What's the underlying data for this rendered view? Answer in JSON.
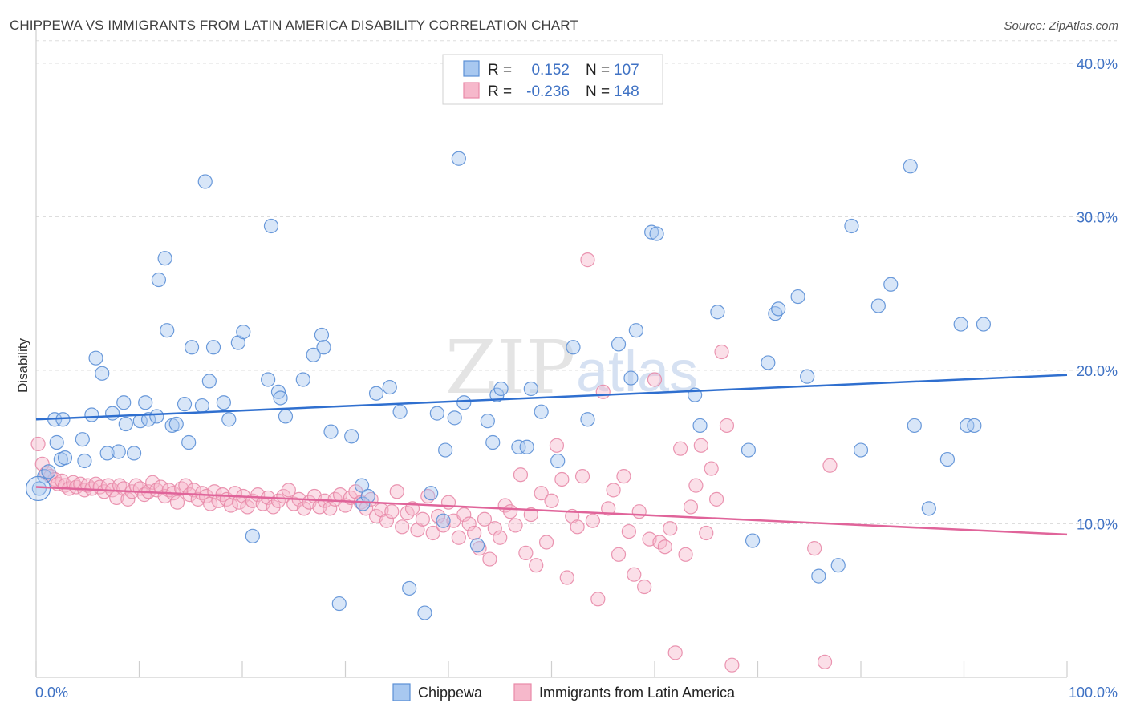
{
  "header": {
    "title": "CHIPPEWA VS IMMIGRANTS FROM LATIN AMERICA DISABILITY CORRELATION CHART",
    "source": "Source: ZipAtlas.com"
  },
  "watermark": {
    "zip": "ZIP",
    "atlas": "atlas"
  },
  "colors": {
    "blue_fill": "#a8c8f0",
    "blue_stroke": "#5b8fd6",
    "blue_line": "#2f6fcf",
    "pink_fill": "#f6b8cb",
    "pink_stroke": "#e889a8",
    "pink_line": "#e0649a",
    "tick_text": "#3f72c4",
    "grid": "#dddddd"
  },
  "chart_data": {
    "type": "scatter",
    "title": "CHIPPEWA VS IMMIGRANTS FROM LATIN AMERICA DISABILITY CORRELATION CHART",
    "xlabel": "",
    "ylabel": "Disability",
    "xlim": [
      0,
      100
    ],
    "ylim": [
      0,
      42
    ],
    "x_ticks": [
      "0.0%",
      "100.0%"
    ],
    "y_ticks": [
      {
        "value": 10,
        "label": "10.0%"
      },
      {
        "value": 20,
        "label": "20.0%"
      },
      {
        "value": 30,
        "label": "30.0%"
      },
      {
        "value": 40,
        "label": "40.0%"
      }
    ],
    "legend": {
      "placement": "top-center",
      "entries": [
        {
          "r_label": "R =",
          "r_value": "0.152",
          "n_label": "N =",
          "n_value": "107"
        },
        {
          "r_label": "R =",
          "r_value": "-0.236",
          "n_label": "N =",
          "n_value": "148"
        }
      ]
    },
    "series": [
      {
        "name": "Chippewa",
        "trend": [
          [
            0,
            16.8
          ],
          [
            100,
            19.7
          ]
        ],
        "points": [
          [
            0.3,
            12.3
          ],
          [
            0.8,
            13.1
          ],
          [
            1.2,
            13.4
          ],
          [
            1.8,
            16.8
          ],
          [
            2.0,
            15.3
          ],
          [
            2.4,
            14.2
          ],
          [
            2.6,
            16.8
          ],
          [
            2.8,
            14.3
          ],
          [
            4.5,
            15.5
          ],
          [
            4.7,
            14.1
          ],
          [
            5.4,
            17.1
          ],
          [
            5.8,
            20.8
          ],
          [
            6.4,
            19.8
          ],
          [
            6.9,
            14.6
          ],
          [
            7.4,
            17.2
          ],
          [
            8.0,
            14.7
          ],
          [
            8.5,
            17.9
          ],
          [
            8.7,
            16.5
          ],
          [
            9.5,
            14.6
          ],
          [
            10.1,
            16.7
          ],
          [
            10.6,
            17.9
          ],
          [
            10.9,
            16.8
          ],
          [
            11.7,
            17.0
          ],
          [
            11.9,
            25.9
          ],
          [
            12.5,
            27.3
          ],
          [
            12.7,
            22.6
          ],
          [
            13.2,
            16.4
          ],
          [
            13.6,
            16.5
          ],
          [
            14.4,
            17.8
          ],
          [
            14.8,
            15.3
          ],
          [
            15.1,
            21.5
          ],
          [
            16.1,
            17.7
          ],
          [
            16.4,
            32.3
          ],
          [
            16.8,
            19.3
          ],
          [
            17.2,
            21.5
          ],
          [
            18.2,
            17.9
          ],
          [
            18.7,
            16.8
          ],
          [
            19.6,
            21.8
          ],
          [
            20.1,
            22.5
          ],
          [
            21.0,
            9.2
          ],
          [
            22.5,
            19.4
          ],
          [
            22.8,
            29.4
          ],
          [
            23.5,
            18.6
          ],
          [
            23.7,
            18.2
          ],
          [
            24.2,
            17.0
          ],
          [
            25.9,
            19.4
          ],
          [
            26.9,
            21.0
          ],
          [
            27.7,
            22.3
          ],
          [
            27.9,
            21.5
          ],
          [
            28.6,
            16.0
          ],
          [
            29.4,
            4.8
          ],
          [
            30.6,
            15.7
          ],
          [
            31.6,
            12.5
          ],
          [
            31.7,
            11.3
          ],
          [
            32.2,
            11.8
          ],
          [
            33.0,
            18.5
          ],
          [
            34.3,
            18.9
          ],
          [
            35.3,
            17.3
          ],
          [
            36.2,
            5.8
          ],
          [
            37.7,
            4.2
          ],
          [
            38.3,
            12.0
          ],
          [
            38.9,
            17.2
          ],
          [
            39.5,
            10.2
          ],
          [
            39.7,
            14.8
          ],
          [
            40.6,
            16.9
          ],
          [
            41.0,
            33.8
          ],
          [
            41.5,
            17.9
          ],
          [
            42.8,
            8.6
          ],
          [
            43.8,
            16.7
          ],
          [
            44.3,
            15.3
          ],
          [
            44.7,
            18.4
          ],
          [
            45.1,
            18.8
          ],
          [
            46.8,
            15.0
          ],
          [
            47.6,
            15.0
          ],
          [
            48.0,
            18.8
          ],
          [
            49.0,
            17.3
          ],
          [
            50.6,
            14.1
          ],
          [
            52.1,
            21.5
          ],
          [
            53.5,
            16.8
          ],
          [
            56.5,
            21.7
          ],
          [
            57.7,
            19.5
          ],
          [
            58.2,
            22.6
          ],
          [
            59.7,
            29.0
          ],
          [
            60.2,
            28.9
          ],
          [
            63.9,
            18.4
          ],
          [
            64.4,
            16.4
          ],
          [
            66.1,
            23.8
          ],
          [
            69.1,
            14.8
          ],
          [
            69.5,
            8.9
          ],
          [
            71.0,
            20.5
          ],
          [
            71.7,
            23.7
          ],
          [
            72.0,
            24.0
          ],
          [
            73.9,
            24.8
          ],
          [
            74.8,
            19.6
          ],
          [
            75.9,
            6.6
          ],
          [
            77.8,
            7.3
          ],
          [
            79.1,
            29.4
          ],
          [
            80.0,
            14.8
          ],
          [
            81.7,
            24.2
          ],
          [
            82.9,
            25.6
          ],
          [
            84.8,
            33.3
          ],
          [
            85.2,
            16.4
          ],
          [
            86.6,
            11.0
          ],
          [
            88.4,
            14.2
          ],
          [
            89.7,
            23.0
          ],
          [
            90.3,
            16.4
          ],
          [
            91.0,
            16.4
          ],
          [
            91.9,
            23.0
          ]
        ]
      },
      {
        "name": "Immigrants from Latin America",
        "trend": [
          [
            0,
            12.4
          ],
          [
            100,
            9.3
          ]
        ],
        "points": [
          [
            0.2,
            15.2
          ],
          [
            0.6,
            13.9
          ],
          [
            1.0,
            13.3
          ],
          [
            1.4,
            13.1
          ],
          [
            1.8,
            12.9
          ],
          [
            2.1,
            12.6
          ],
          [
            2.5,
            12.8
          ],
          [
            2.8,
            12.5
          ],
          [
            3.2,
            12.3
          ],
          [
            3.6,
            12.7
          ],
          [
            3.9,
            12.4
          ],
          [
            4.3,
            12.6
          ],
          [
            4.7,
            12.2
          ],
          [
            5.0,
            12.5
          ],
          [
            5.4,
            12.3
          ],
          [
            5.8,
            12.6
          ],
          [
            6.2,
            12.4
          ],
          [
            6.6,
            12.1
          ],
          [
            7.0,
            12.5
          ],
          [
            7.4,
            12.2
          ],
          [
            7.8,
            11.7
          ],
          [
            8.1,
            12.5
          ],
          [
            8.5,
            12.3
          ],
          [
            8.9,
            11.6
          ],
          [
            9.3,
            12.1
          ],
          [
            9.7,
            12.5
          ],
          [
            10.1,
            12.3
          ],
          [
            10.5,
            11.9
          ],
          [
            10.9,
            12.1
          ],
          [
            11.3,
            12.7
          ],
          [
            11.7,
            12.2
          ],
          [
            12.1,
            12.4
          ],
          [
            12.5,
            11.8
          ],
          [
            12.9,
            12.2
          ],
          [
            13.3,
            12.0
          ],
          [
            13.7,
            11.4
          ],
          [
            14.1,
            12.3
          ],
          [
            14.5,
            12.5
          ],
          [
            14.9,
            11.9
          ],
          [
            15.3,
            12.2
          ],
          [
            15.7,
            11.6
          ],
          [
            16.1,
            12.0
          ],
          [
            16.5,
            11.8
          ],
          [
            16.9,
            11.3
          ],
          [
            17.3,
            12.1
          ],
          [
            17.7,
            11.5
          ],
          [
            18.1,
            11.9
          ],
          [
            18.5,
            11.6
          ],
          [
            18.9,
            11.2
          ],
          [
            19.3,
            12.0
          ],
          [
            19.7,
            11.4
          ],
          [
            20.1,
            11.8
          ],
          [
            20.5,
            11.1
          ],
          [
            21.0,
            11.5
          ],
          [
            21.5,
            11.9
          ],
          [
            22.0,
            11.3
          ],
          [
            22.5,
            11.7
          ],
          [
            23.0,
            11.1
          ],
          [
            23.5,
            11.5
          ],
          [
            24.0,
            11.8
          ],
          [
            24.5,
            12.2
          ],
          [
            25.0,
            11.3
          ],
          [
            25.5,
            11.6
          ],
          [
            26.0,
            11.0
          ],
          [
            26.5,
            11.4
          ],
          [
            27.0,
            11.8
          ],
          [
            27.5,
            11.1
          ],
          [
            28.0,
            11.5
          ],
          [
            28.5,
            11.0
          ],
          [
            29.0,
            11.6
          ],
          [
            29.5,
            11.9
          ],
          [
            30.0,
            11.2
          ],
          [
            30.5,
            11.7
          ],
          [
            31.0,
            12.1
          ],
          [
            31.5,
            11.4
          ],
          [
            32.0,
            11.0
          ],
          [
            32.5,
            11.6
          ],
          [
            33.0,
            10.5
          ],
          [
            33.5,
            10.9
          ],
          [
            34.0,
            10.2
          ],
          [
            34.5,
            10.8
          ],
          [
            35.0,
            12.1
          ],
          [
            35.5,
            9.8
          ],
          [
            36.0,
            10.7
          ],
          [
            36.5,
            11.0
          ],
          [
            37.0,
            9.6
          ],
          [
            37.5,
            10.3
          ],
          [
            38.0,
            11.8
          ],
          [
            38.5,
            9.4
          ],
          [
            39.0,
            10.5
          ],
          [
            39.5,
            9.9
          ],
          [
            40.0,
            11.4
          ],
          [
            40.5,
            10.2
          ],
          [
            41.0,
            9.1
          ],
          [
            41.5,
            10.6
          ],
          [
            42.0,
            10.0
          ],
          [
            42.5,
            9.4
          ],
          [
            43.0,
            8.4
          ],
          [
            43.5,
            10.3
          ],
          [
            44.0,
            7.7
          ],
          [
            44.5,
            9.7
          ],
          [
            45.0,
            9.1
          ],
          [
            45.5,
            11.2
          ],
          [
            46.0,
            10.8
          ],
          [
            46.5,
            9.9
          ],
          [
            47.0,
            13.2
          ],
          [
            47.5,
            8.1
          ],
          [
            48.0,
            10.6
          ],
          [
            48.5,
            7.3
          ],
          [
            49.0,
            12.0
          ],
          [
            49.5,
            8.8
          ],
          [
            50.0,
            11.5
          ],
          [
            50.5,
            15.1
          ],
          [
            51.0,
            12.9
          ],
          [
            51.5,
            6.5
          ],
          [
            52.0,
            10.5
          ],
          [
            52.5,
            9.8
          ],
          [
            53.0,
            13.1
          ],
          [
            53.5,
            27.2
          ],
          [
            54.0,
            10.2
          ],
          [
            54.5,
            5.1
          ],
          [
            55.0,
            18.6
          ],
          [
            55.5,
            11.0
          ],
          [
            56.0,
            12.2
          ],
          [
            56.5,
            8.0
          ],
          [
            57.0,
            13.1
          ],
          [
            57.5,
            9.5
          ],
          [
            58.0,
            6.7
          ],
          [
            58.5,
            10.8
          ],
          [
            59.0,
            5.9
          ],
          [
            59.5,
            9.0
          ],
          [
            60.0,
            19.4
          ],
          [
            60.5,
            8.8
          ],
          [
            61.0,
            8.5
          ],
          [
            61.5,
            9.7
          ],
          [
            62.0,
            1.6
          ],
          [
            62.5,
            14.9
          ],
          [
            63.0,
            8.0
          ],
          [
            63.5,
            11.1
          ],
          [
            64.0,
            12.5
          ],
          [
            64.5,
            15.1
          ],
          [
            65.0,
            9.4
          ],
          [
            65.5,
            13.6
          ],
          [
            66.0,
            11.6
          ],
          [
            66.5,
            21.2
          ],
          [
            67.0,
            16.4
          ],
          [
            67.5,
            0.8
          ],
          [
            75.5,
            8.4
          ],
          [
            76.5,
            1.0
          ],
          [
            77.0,
            13.8
          ]
        ]
      }
    ]
  },
  "bottom_legend": [
    {
      "label": "Chippewa"
    },
    {
      "label": "Immigrants from Latin America"
    }
  ]
}
